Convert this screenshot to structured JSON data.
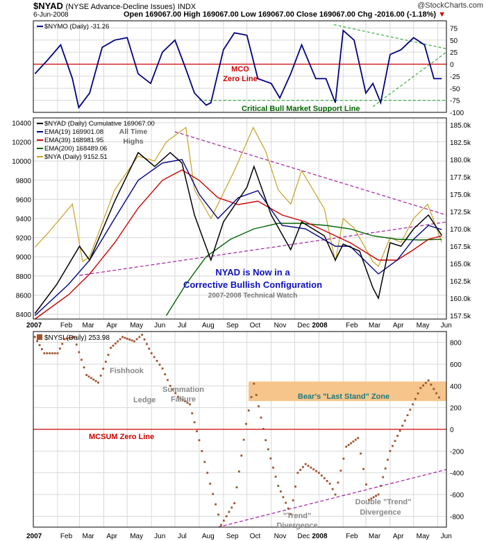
{
  "header": {
    "symbol": "$NYAD",
    "description": "(NYSE Advance-Decline Issues)",
    "exchange": "INDX",
    "date": "6-Jun-2008",
    "watermark": "@StockCharts.com",
    "ohlc_line": "Open 169067.00  High 169067.00  Low 169067.00  Close 169067.00  Chg -2016.00 (-1.18%)",
    "chg_arrow": "▼"
  },
  "colors": {
    "navy": "#000080",
    "red": "#cc0000",
    "green": "#006400",
    "purple": "#a020a0",
    "gold": "#c8a020",
    "dashgreen": "#3aaa3a",
    "zone": "#f5c58c",
    "dots": "#a0522d"
  },
  "chart_data": [
    {
      "type": "line",
      "legend": "$NYMO (Daily) -31.26",
      "ylim": [
        -100,
        90
      ],
      "yticks": [
        "75",
        "50",
        "25",
        "0",
        "-25",
        "-50",
        "-75",
        "-100"
      ],
      "series": [
        {
          "name": "$NYMO (Daily) -31.26",
          "x": [
            "2007-01-03",
            "2007-01-20",
            "2007-02-05",
            "2007-02-20",
            "2007-02-28",
            "2007-03-14",
            "2007-03-30",
            "2007-04-15",
            "2007-05-01",
            "2007-05-15",
            "2007-05-31",
            "2007-06-15",
            "2007-07-01",
            "2007-07-15",
            "2007-07-26",
            "2007-08-10",
            "2007-08-16",
            "2007-09-01",
            "2007-09-15",
            "2007-10-01",
            "2007-10-15",
            "2007-11-01",
            "2007-11-12",
            "2007-11-26",
            "2007-12-10",
            "2007-12-28",
            "2008-01-10",
            "2008-01-22",
            "2008-02-01",
            "2008-02-15",
            "2008-03-01",
            "2008-03-10",
            "2008-03-20",
            "2008-04-01",
            "2008-04-15",
            "2008-05-01",
            "2008-05-15",
            "2008-05-27",
            "2008-06-06"
          ],
          "values": [
            -20,
            10,
            40,
            -30,
            -90,
            -60,
            35,
            50,
            55,
            -20,
            -40,
            25,
            50,
            -10,
            -60,
            -85,
            -80,
            30,
            65,
            60,
            -30,
            -40,
            -70,
            -20,
            40,
            -30,
            -30,
            -80,
            70,
            50,
            -60,
            -40,
            -80,
            20,
            30,
            55,
            40,
            -30,
            -30
          ]
        }
      ],
      "annotations": [
        "MCO",
        "Zero Line",
        "Critical Bull Market Support Line"
      ]
    },
    {
      "type": "line",
      "legend": "$NYAD (Daily) Cumulative 169067.00",
      "ylim": [
        8350,
        10450
      ],
      "y2lim": [
        157000,
        186000
      ],
      "yticks_left": [
        "10400",
        "10200",
        "10000",
        "9800",
        "9600",
        "9400",
        "9200",
        "9000",
        "8800",
        "8600",
        "8400"
      ],
      "yticks_right": [
        "185.0k",
        "182.5k",
        "180.0k",
        "177.5k",
        "175.0k",
        "172.5k",
        "170.0k",
        "167.5k",
        "165.0k",
        "162.5k",
        "160.0k",
        "157.5k"
      ],
      "series": [
        {
          "name": "$NYAD (Daily) Cumulative 169067.00",
          "axis": "right",
          "x": [
            "2007-01-03",
            "2007-01-31",
            "2007-03-01",
            "2007-03-14",
            "2007-04-15",
            "2007-05-15",
            "2007-06-05",
            "2007-06-25",
            "2007-07-10",
            "2007-07-26",
            "2007-08-16",
            "2007-09-01",
            "2007-10-01",
            "2007-10-10",
            "2007-11-01",
            "2007-11-26",
            "2007-12-10",
            "2008-01-08",
            "2008-01-22",
            "2008-02-01",
            "2008-02-22",
            "2008-03-10",
            "2008-03-17",
            "2008-04-01",
            "2008-04-15",
            "2008-05-01",
            "2008-05-20",
            "2008-06-06"
          ],
          "values": [
            157800,
            162000,
            167500,
            165500,
            174000,
            181000,
            179000,
            181000,
            179500,
            172000,
            165500,
            171000,
            176000,
            179000,
            172000,
            167000,
            171000,
            169000,
            165500,
            167800,
            166800,
            161500,
            160000,
            168000,
            167500,
            170000,
            172000,
            169067
          ]
        },
        {
          "name": "EMA(19) 169901.08",
          "axis": "right",
          "x": [
            "2007-01-03",
            "2007-02-15",
            "2007-03-14",
            "2007-04-15",
            "2007-05-15",
            "2007-06-15",
            "2007-07-10",
            "2007-08-01",
            "2007-08-25",
            "2007-09-20",
            "2007-10-15",
            "2007-11-15",
            "2007-12-15",
            "2008-01-22",
            "2008-02-10",
            "2008-03-17",
            "2008-04-10",
            "2008-05-01",
            "2008-05-20",
            "2008-06-06"
          ],
          "values": [
            157500,
            162000,
            165500,
            171500,
            177000,
            179500,
            180000,
            175000,
            171500,
            174500,
            175500,
            170500,
            170000,
            167500,
            167500,
            163500,
            165500,
            168500,
            170500,
            169900
          ]
        },
        {
          "name": "EMA(39) 168981.95",
          "axis": "right",
          "x": [
            "2007-01-03",
            "2007-02-15",
            "2007-03-14",
            "2007-04-15",
            "2007-05-15",
            "2007-06-15",
            "2007-07-10",
            "2007-08-01",
            "2007-08-25",
            "2007-09-20",
            "2007-10-15",
            "2007-11-15",
            "2007-12-15",
            "2008-01-22",
            "2008-02-10",
            "2008-03-17",
            "2008-04-10",
            "2008-05-01",
            "2008-05-20",
            "2008-06-06"
          ],
          "values": [
            157000,
            160500,
            163500,
            168000,
            173000,
            177000,
            178500,
            177000,
            174500,
            173500,
            174000,
            172000,
            171000,
            169000,
            168000,
            165500,
            165500,
            167000,
            168500,
            168980
          ]
        },
        {
          "name": "EMA(200) 168489.06",
          "axis": "right",
          "x": [
            "2007-06-20",
            "2007-07-15",
            "2007-08-10",
            "2007-09-10",
            "2007-10-10",
            "2007-11-10",
            "2007-12-10",
            "2008-01-10",
            "2008-02-10",
            "2008-03-10",
            "2008-04-10",
            "2008-05-10",
            "2008-06-06"
          ],
          "values": [
            157500,
            162000,
            166000,
            168500,
            170000,
            170800,
            170800,
            170500,
            170000,
            169000,
            168500,
            168400,
            168490
          ]
        },
        {
          "name": "$NYA (Daily) 9152.51",
          "axis": "left",
          "x": [
            "2007-01-03",
            "2007-01-20",
            "2007-02-20",
            "2007-03-05",
            "2007-03-14",
            "2007-04-15",
            "2007-05-15",
            "2007-06-05",
            "2007-06-20",
            "2007-07-15",
            "2007-07-26",
            "2007-08-16",
            "2007-09-15",
            "2007-10-09",
            "2007-10-25",
            "2007-11-10",
            "2007-11-26",
            "2007-12-10",
            "2008-01-08",
            "2008-01-22",
            "2008-02-01",
            "2008-02-15",
            "2008-03-10",
            "2008-03-17",
            "2008-04-01",
            "2008-04-15",
            "2008-05-01",
            "2008-05-19",
            "2008-06-06"
          ],
          "values": [
            9100,
            9250,
            9550,
            8950,
            9000,
            9700,
            10050,
            10000,
            10200,
            10350,
            9700,
            9400,
            9900,
            10350,
            10100,
            9700,
            9550,
            9900,
            9500,
            8950,
            9400,
            9300,
            8950,
            8900,
            9200,
            9150,
            9400,
            9550,
            9152.51
          ]
        }
      ],
      "annotations": [
        "All Time",
        "Highs",
        "NYAD is Now in a",
        "Corrective Bullish Configuration",
        "2007-2008 Technical Watch"
      ]
    },
    {
      "type": "scatter",
      "legend": "$NYSI (Daily) 253.98",
      "ylim": [
        -900,
        900
      ],
      "yticks": [
        "800",
        "600",
        "400",
        "200",
        "0",
        "-200",
        "-400",
        "-600",
        "-800"
      ],
      "series": [
        {
          "name": "$NYSI (Daily) 253.98",
          "x": [
            "2007-01-03",
            "2007-01-15",
            "2007-02-01",
            "2007-02-10",
            "2007-02-22",
            "2007-03-10",
            "2007-03-25",
            "2007-04-10",
            "2007-04-25",
            "2007-05-10",
            "2007-05-20",
            "2007-06-01",
            "2007-06-15",
            "2007-06-25",
            "2007-07-05",
            "2007-07-20",
            "2007-08-01",
            "2007-08-15",
            "2007-08-29",
            "2007-09-15",
            "2007-09-30",
            "2007-10-10",
            "2007-10-25",
            "2007-11-10",
            "2007-11-26",
            "2007-12-05",
            "2007-12-15",
            "2008-01-01",
            "2008-01-15",
            "2008-01-22",
            "2008-02-05",
            "2008-02-20",
            "2008-03-05",
            "2008-03-17",
            "2008-04-01",
            "2008-04-20",
            "2008-05-10",
            "2008-05-20",
            "2008-06-06"
          ],
          "values": [
            850,
            700,
            700,
            830,
            850,
            500,
            430,
            750,
            850,
            810,
            870,
            700,
            560,
            400,
            300,
            230,
            -100,
            -500,
            -880,
            -680,
            50,
            420,
            -100,
            -520,
            -780,
            -400,
            -320,
            -400,
            -500,
            -600,
            -160,
            -80,
            -650,
            -600,
            -200,
            80,
            380,
            450,
            253.98
          ]
        }
      ],
      "annotations": [
        "Fishhook",
        "Ledge",
        "Summation",
        "Failure",
        "Bear's \"Last Stand\" Zone",
        "MCSUM Zero Line",
        "\"Trend\"",
        "Divergence",
        "Double \"Trend\"",
        "Divergence"
      ]
    }
  ],
  "x_axis_months": [
    "2007",
    "Feb",
    "Mar",
    "Apr",
    "May",
    "Jun",
    "Jul",
    "Aug",
    "Sep",
    "Oct",
    "Nov",
    "Dec",
    "2008",
    "Feb",
    "Mar",
    "Apr",
    "May",
    "Jun"
  ]
}
